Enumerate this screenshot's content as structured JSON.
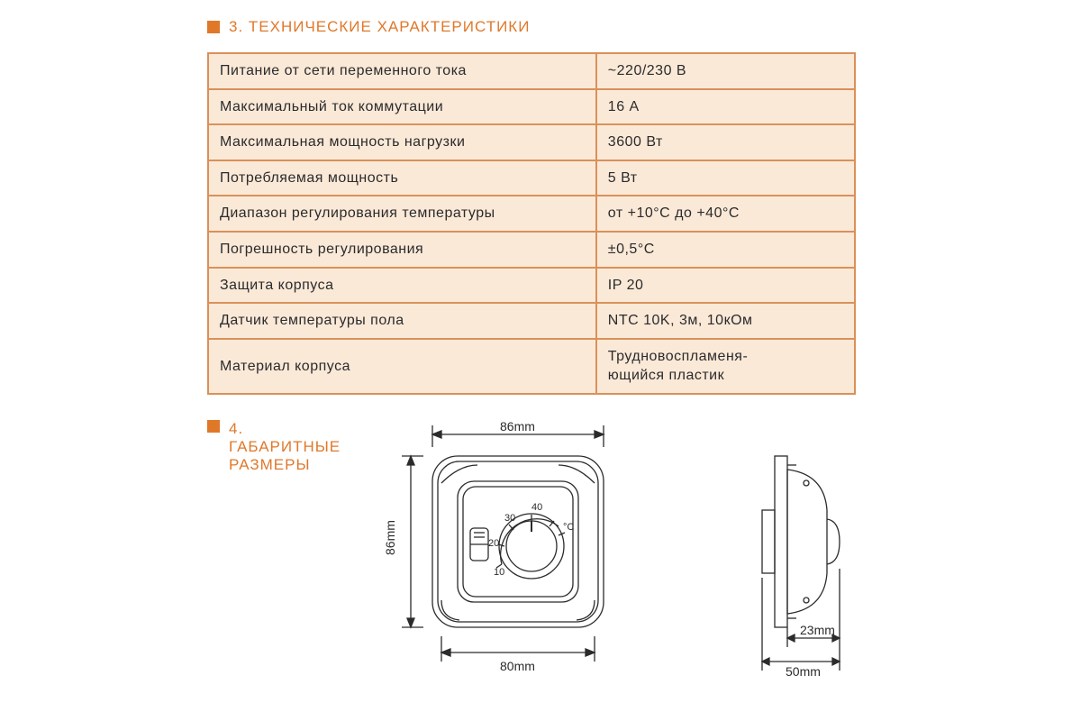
{
  "colors": {
    "accent": "#e0782a",
    "table_border": "#d9915a",
    "table_bg": "#fbe9d8",
    "text": "#2b2b2b",
    "drawing_stroke": "#2b2b2b"
  },
  "section3": {
    "title": "3. ТЕХНИЧЕСКИЕ ХАРАКТЕРИСТИКИ",
    "rows": [
      {
        "param": "Питание от сети переменного тока",
        "value": "~220/230 В"
      },
      {
        "param": "Максимальный ток коммутации",
        "value": "16 А"
      },
      {
        "param": "Максимальная мощность нагрузки",
        "value": "3600 Вт"
      },
      {
        "param": "Потребляемая мощность",
        "value": "5 Вт"
      },
      {
        "param": "Диапазон регулирования температуры",
        "value": "от +10°С до +40°С"
      },
      {
        "param": "Погрешность регулирования",
        "value": "±0,5°С"
      },
      {
        "param": "Защита корпуса",
        "value": "IP 20"
      },
      {
        "param": "Датчик температуры пола",
        "value": "NTC 10K, 3м, 10кОм"
      },
      {
        "param": "Материал корпуса",
        "value": "Трудновоспламеня-\nющийся пластик"
      }
    ]
  },
  "section4": {
    "title_line1": "4. ГАБАРИТНЫЕ",
    "title_line2": "РАЗМЕРЫ",
    "front": {
      "width_label_top": "86mm",
      "height_label_left": "86mm",
      "width_label_bottom": "80mm",
      "dial_labels": {
        "t10": "10",
        "t20": "20",
        "t30": "30",
        "t40": "40",
        "unit": "°C"
      }
    },
    "side": {
      "depth_label": "23mm",
      "width_label": "50mm"
    }
  }
}
